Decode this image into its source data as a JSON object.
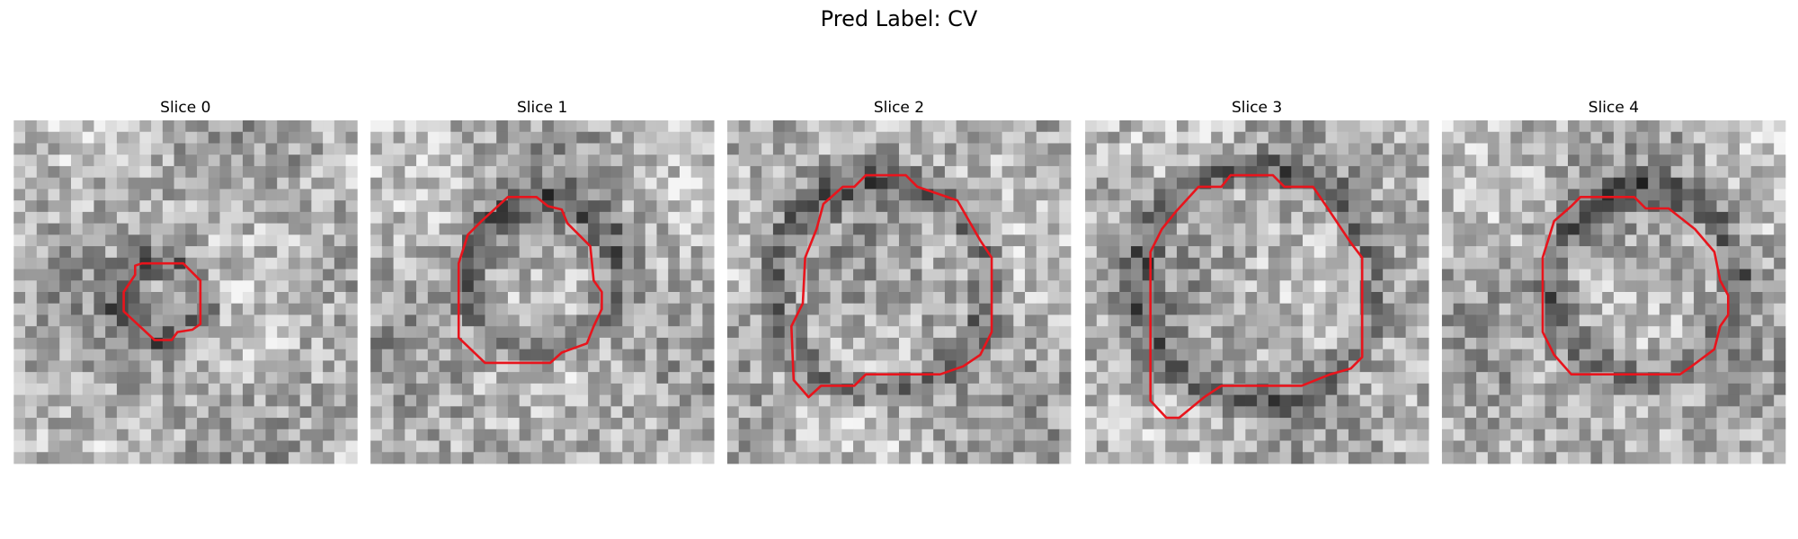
{
  "title": "Pred Label: CV",
  "panels": [
    {
      "title": "Slice 0"
    },
    {
      "title": "Slice 1"
    },
    {
      "title": "Slice 2"
    },
    {
      "title": "Slice 3"
    },
    {
      "title": "Slice 4"
    }
  ]
}
